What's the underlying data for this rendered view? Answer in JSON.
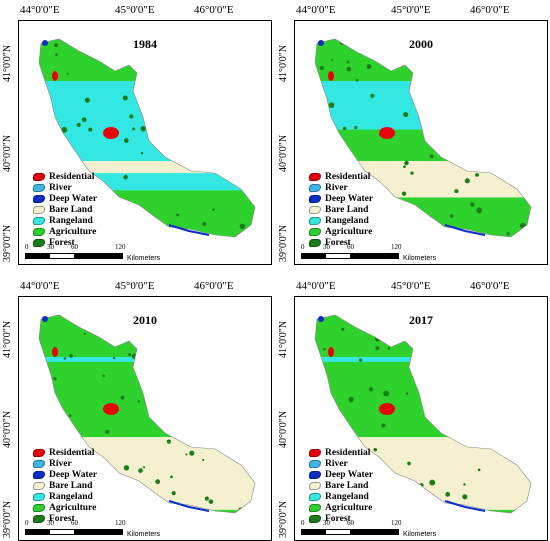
{
  "lon_labels": [
    "44°0'0\"E",
    "45°0'0\"E",
    "46°0'0\"E"
  ],
  "lat_labels": [
    "41°0'0\"N",
    "40°0'0\"N",
    "39°0'0\"N"
  ],
  "legend": [
    {
      "label": "Residential",
      "color": "#e8000b"
    },
    {
      "label": "River",
      "color": "#3fb5e8"
    },
    {
      "label": "Deep Water",
      "color": "#0a2ec8"
    },
    {
      "label": "Bare Land",
      "color": "#f4f0d0"
    },
    {
      "label": "Rangeland",
      "color": "#33e8e2"
    },
    {
      "label": "Agriculture",
      "color": "#2fd12c"
    },
    {
      "label": "Forest",
      "color": "#1a7d1a"
    }
  ],
  "scale_bar": {
    "ticks": [
      "0",
      "30",
      "60",
      "120"
    ],
    "unit": "Kilometers"
  },
  "panels": [
    {
      "year": "1984",
      "agri_share": 0.35,
      "range_share": 0.45,
      "bare_share": 0.05
    },
    {
      "year": "2000",
      "agri_share": 0.55,
      "range_share": 0.2,
      "bare_share": 0.15
    },
    {
      "year": "2010",
      "agri_share": 0.6,
      "range_share": 0.02,
      "bare_share": 0.3
    },
    {
      "year": "2017",
      "agri_share": 0.6,
      "range_share": 0.02,
      "bare_share": 0.3
    }
  ]
}
